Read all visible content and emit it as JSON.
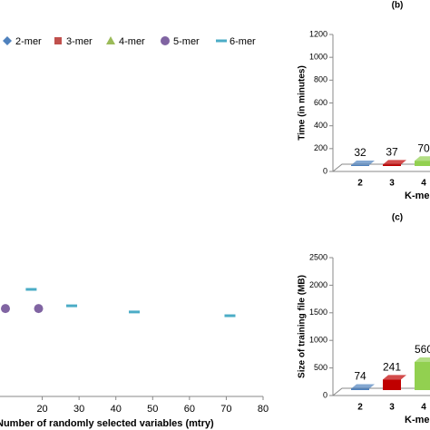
{
  "chart_data": [
    {
      "type": "scatter",
      "x_label": "Number of randomly selected variables (mtry)",
      "xlim": [
        10,
        80
      ],
      "xticks": [
        20,
        30,
        40,
        50,
        60,
        70,
        80
      ],
      "ylim": [
        0,
        100
      ],
      "series": [
        {
          "name": "2-mer",
          "color": "#4f81bd",
          "marker": "diamond",
          "x": [],
          "values": []
        },
        {
          "name": "3-mer",
          "color": "#c0504d",
          "marker": "square",
          "x": [],
          "values": []
        },
        {
          "name": "4-mer",
          "color": "#9bbb59",
          "marker": "triangle",
          "x": [],
          "values": []
        },
        {
          "name": "5-mer",
          "color": "#8064a2",
          "marker": "circle",
          "x": [
            10,
            19
          ],
          "values": [
            25.7,
            25.7
          ]
        },
        {
          "name": "6-mer",
          "color": "#4bacc6",
          "marker": "dash",
          "x": [
            17,
            28,
            45,
            71
          ],
          "values": [
            31.3,
            26.5,
            24.7,
            23.6
          ]
        }
      ]
    },
    {
      "type": "bar",
      "title": "(b)",
      "y_label": "Time (in minutes)",
      "x_label": "K-mer",
      "categories": [
        "2",
        "3",
        "4"
      ],
      "values": [
        32,
        37,
        70
      ],
      "colors": [
        "#4f81bd",
        "#c00000",
        "#92d050"
      ],
      "ylim": [
        0,
        1200
      ],
      "yticks": [
        0,
        200,
        400,
        600,
        800,
        1000,
        1200
      ]
    },
    {
      "type": "bar",
      "title": "(c)",
      "y_label": "Size of training file (MB)",
      "x_label": "K-mer",
      "categories": [
        "2",
        "3",
        "4"
      ],
      "values": [
        74,
        241,
        560
      ],
      "colors": [
        "#4f81bd",
        "#c00000",
        "#92d050"
      ],
      "ylim": [
        0,
        2500
      ],
      "yticks": [
        0,
        500,
        1000,
        1500,
        2000,
        2500
      ]
    }
  ]
}
